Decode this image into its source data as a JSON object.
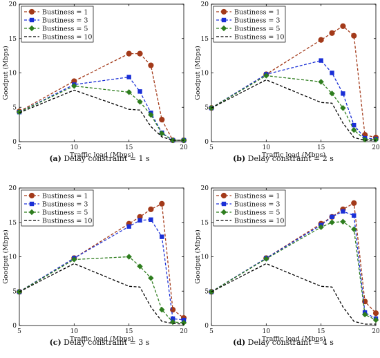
{
  "chart_data": [
    {
      "type": "line",
      "caption_letter": "(a)",
      "caption_text": "Delay constraint = 1 s",
      "xlabel": "Traffic load (Mbps)",
      "ylabel": "Goodput (Mbps)",
      "xlim": [
        5,
        20
      ],
      "ylim": [
        0,
        20
      ],
      "xticks": [
        5,
        10,
        15,
        20
      ],
      "yticks": [
        0,
        5,
        10,
        15,
        20
      ],
      "legend_position": "top-left",
      "series": [
        {
          "name": "Bustiness = 1",
          "color": "#a33a1a",
          "marker": "circle",
          "x": [
            5,
            10,
            15,
            16,
            17,
            18,
            19,
            20
          ],
          "y": [
            4.4,
            8.8,
            12.8,
            12.8,
            11.1,
            3.2,
            0.2,
            0.2
          ]
        },
        {
          "name": "Bustiness = 3",
          "color": "#1a2fd6",
          "marker": "square",
          "x": [
            5,
            10,
            15,
            16,
            17,
            18,
            19,
            20
          ],
          "y": [
            4.3,
            8.3,
            9.4,
            7.3,
            4.2,
            1.3,
            0.2,
            0.2
          ]
        },
        {
          "name": "Bustiness = 5",
          "color": "#2e7d1e",
          "marker": "diamond",
          "x": [
            5,
            10,
            15,
            16,
            17,
            18,
            19,
            20
          ],
          "y": [
            4.3,
            8.1,
            7.2,
            5.8,
            3.9,
            1.2,
            0.2,
            0.2
          ]
        },
        {
          "name": "Bustiness = 10",
          "color": "#000000",
          "marker": "none",
          "x": [
            5,
            10,
            15,
            16,
            17,
            18,
            19,
            20
          ],
          "y": [
            4.2,
            7.5,
            4.7,
            4.6,
            2.2,
            0.7,
            0.2,
            0.2
          ]
        }
      ]
    },
    {
      "type": "line",
      "caption_letter": "(b)",
      "caption_text": "Delay constraint = 2 s",
      "xlabel": "Traffic load (Mbps)",
      "ylabel": "Goodput (Mbps)",
      "xlim": [
        5,
        20
      ],
      "ylim": [
        0,
        20
      ],
      "xticks": [
        5,
        10,
        15,
        20
      ],
      "yticks": [
        0,
        5,
        10,
        15,
        20
      ],
      "legend_position": "top-left",
      "series": [
        {
          "name": "Bustiness = 1",
          "color": "#a33a1a",
          "marker": "circle",
          "x": [
            5,
            10,
            15,
            16,
            17,
            18,
            19,
            20
          ],
          "y": [
            4.9,
            9.8,
            14.8,
            15.8,
            16.8,
            15.4,
            1.0,
            0.6
          ]
        },
        {
          "name": "Bustiness = 3",
          "color": "#1a2fd6",
          "marker": "square",
          "x": [
            5,
            10,
            15,
            16,
            17,
            18,
            19,
            20
          ],
          "y": [
            4.9,
            9.8,
            11.8,
            10.0,
            7.0,
            2.4,
            0.5,
            0.4
          ]
        },
        {
          "name": "Bustiness = 5",
          "color": "#2e7d1e",
          "marker": "diamond",
          "x": [
            5,
            10,
            15,
            16,
            17,
            18,
            19,
            20
          ],
          "y": [
            4.9,
            9.6,
            8.7,
            7.0,
            4.9,
            1.7,
            0.3,
            0.3
          ]
        },
        {
          "name": "Bustiness = 10",
          "color": "#000000",
          "marker": "none",
          "x": [
            5,
            10,
            15,
            16,
            17,
            18,
            19,
            20
          ],
          "y": [
            4.9,
            9.0,
            5.7,
            5.6,
            2.7,
            0.6,
            0.2,
            0.2
          ]
        }
      ]
    },
    {
      "type": "line",
      "caption_letter": "(c)",
      "caption_text": "Delay constraint = 3 s",
      "xlabel": "Traffic load (Mbps)",
      "ylabel": "Goodput (Mbps)",
      "xlim": [
        5,
        20
      ],
      "ylim": [
        0,
        20
      ],
      "xticks": [
        5,
        10,
        15,
        20
      ],
      "yticks": [
        0,
        5,
        10,
        15,
        20
      ],
      "legend_position": "top-left",
      "series": [
        {
          "name": "Bustiness = 1",
          "color": "#a33a1a",
          "marker": "circle",
          "x": [
            5,
            10,
            15,
            16,
            17,
            18,
            19,
            20
          ],
          "y": [
            4.9,
            9.8,
            14.8,
            15.8,
            16.9,
            17.7,
            2.3,
            1.1
          ]
        },
        {
          "name": "Bustiness = 3",
          "color": "#1a2fd6",
          "marker": "square",
          "x": [
            5,
            10,
            15,
            16,
            17,
            18,
            19,
            20
          ],
          "y": [
            4.9,
            9.8,
            14.4,
            15.3,
            15.4,
            12.9,
            1.0,
            0.8
          ]
        },
        {
          "name": "Bustiness = 5",
          "color": "#2e7d1e",
          "marker": "diamond",
          "x": [
            5,
            10,
            15,
            16,
            17,
            18,
            19,
            20
          ],
          "y": [
            4.9,
            9.6,
            10.0,
            8.6,
            6.9,
            2.3,
            0.5,
            0.4
          ]
        },
        {
          "name": "Bustiness = 10",
          "color": "#000000",
          "marker": "none",
          "x": [
            5,
            10,
            15,
            16,
            17,
            18,
            19,
            20
          ],
          "y": [
            4.9,
            9.0,
            5.7,
            5.6,
            2.7,
            0.6,
            0.3,
            0.2
          ]
        }
      ]
    },
    {
      "type": "line",
      "caption_letter": "(d)",
      "caption_text": "Delay constraint = 4 s",
      "xlabel": "Traffic load (Mbps)",
      "ylabel": "Goodput (Mbps)",
      "xlim": [
        5,
        20
      ],
      "ylim": [
        0,
        20
      ],
      "xticks": [
        5,
        10,
        15,
        20
      ],
      "yticks": [
        0,
        5,
        10,
        15,
        20
      ],
      "legend_position": "top-left",
      "series": [
        {
          "name": "Bustiness = 1",
          "color": "#a33a1a",
          "marker": "circle",
          "x": [
            5,
            10,
            15,
            16,
            17,
            18,
            19,
            20
          ],
          "y": [
            4.9,
            9.8,
            14.8,
            15.8,
            16.9,
            17.8,
            3.5,
            1.8
          ]
        },
        {
          "name": "Bustiness = 3",
          "color": "#1a2fd6",
          "marker": "square",
          "x": [
            5,
            10,
            15,
            16,
            17,
            18,
            19,
            20
          ],
          "y": [
            4.9,
            9.8,
            14.6,
            15.8,
            16.6,
            16.0,
            1.9,
            1.0
          ]
        },
        {
          "name": "Bustiness = 5",
          "color": "#2e7d1e",
          "marker": "diamond",
          "x": [
            5,
            10,
            15,
            16,
            17,
            18,
            19,
            20
          ],
          "y": [
            4.9,
            9.7,
            14.3,
            15.0,
            15.1,
            14.0,
            1.6,
            0.8
          ]
        },
        {
          "name": "Bustiness = 10",
          "color": "#000000",
          "marker": "none",
          "x": [
            5,
            10,
            15,
            16,
            17,
            18,
            19,
            20
          ],
          "y": [
            4.9,
            9.0,
            5.7,
            5.6,
            2.7,
            0.6,
            0.2,
            0.2
          ]
        }
      ]
    }
  ]
}
